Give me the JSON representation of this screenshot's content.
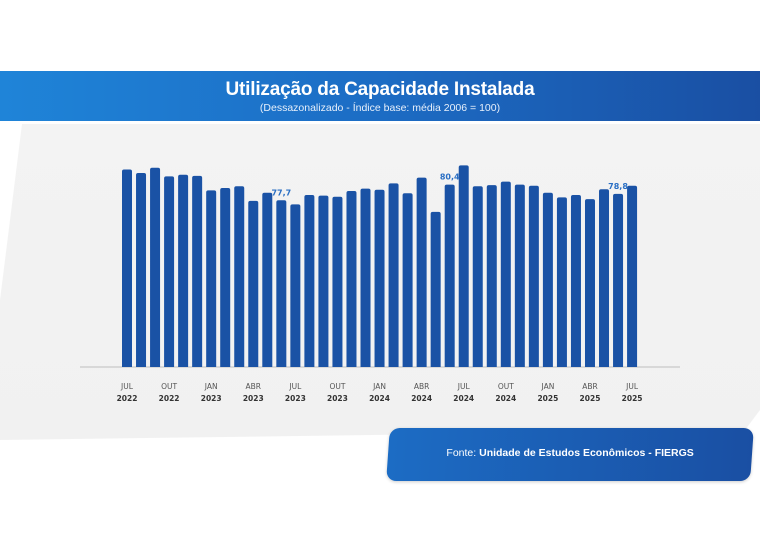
{
  "header": {
    "title": "Utilização da Capacidade Instalada",
    "subtitle": "(Dessazonalizado - Índice base: média 2006 = 100)"
  },
  "footer": {
    "prefix": "Fonte:",
    "source": "Unidade de Estudos Econômicos - FIERGS"
  },
  "colors": {
    "bar": "#1f7bd0",
    "bar_end": "#1a52a5",
    "label": "#2a6fc4",
    "header_start": "#1f84d8",
    "header_end": "#1a4fa3"
  },
  "chart_data": {
    "type": "bar",
    "title": "Utilização da Capacidade Instalada",
    "subtitle": "(Dessazonalizado - Índice base: média 2006 = 100)",
    "categories": [
      "JUL 2022",
      "AGO 2022",
      "SET 2022",
      "OUT 2022",
      "NOV 2022",
      "DEZ 2022",
      "JAN 2023",
      "FEV 2023",
      "MAR 2023",
      "ABR 2023",
      "MAI 2023",
      "JUN 2023",
      "JUL 2023",
      "AGO 2023",
      "SET 2023",
      "OUT 2023",
      "NOV 2023",
      "DEZ 2023",
      "JAN 2024",
      "FEV 2024",
      "MAR 2024",
      "ABR 2024",
      "MAI 2024",
      "JUN 2024",
      "JUL 2024",
      "AGO 2024",
      "SET 2024",
      "OUT 2024",
      "NOV 2024",
      "DEZ 2024",
      "JAN 2025",
      "FEV 2025",
      "MAR 2025",
      "ABR 2025",
      "MAI 2025",
      "JUN 2025",
      "JUL 2025"
    ],
    "values": [
      83.0,
      82.4,
      83.3,
      81.8,
      82.1,
      81.9,
      79.4,
      79.8,
      80.1,
      77.6,
      79.0,
      77.7,
      77.0,
      78.6,
      78.5,
      78.3,
      79.3,
      79.7,
      79.5,
      80.6,
      78.9,
      81.6,
      75.7,
      80.4,
      83.7,
      80.1,
      80.3,
      80.9,
      80.4,
      80.2,
      79.0,
      78.2,
      78.6,
      77.9,
      79.6,
      78.8,
      80.2
    ],
    "data_labels": [
      {
        "index": 11,
        "label": "77,7"
      },
      {
        "index": 23,
        "label": "80,4"
      },
      {
        "index": 35,
        "label": "78,8"
      }
    ],
    "ticks": [
      {
        "index": 0,
        "month": "JUL",
        "year": "2022"
      },
      {
        "index": 3,
        "month": "OUT",
        "year": "2022"
      },
      {
        "index": 6,
        "month": "JAN",
        "year": "2023"
      },
      {
        "index": 9,
        "month": "ABR",
        "year": "2023"
      },
      {
        "index": 12,
        "month": "JUL",
        "year": "2023"
      },
      {
        "index": 15,
        "month": "OUT",
        "year": "2023"
      },
      {
        "index": 18,
        "month": "JAN",
        "year": "2024"
      },
      {
        "index": 21,
        "month": "ABR",
        "year": "2024"
      },
      {
        "index": 24,
        "month": "JUL",
        "year": "2024"
      },
      {
        "index": 27,
        "month": "OUT",
        "year": "2024"
      },
      {
        "index": 30,
        "month": "JAN",
        "year": "2025"
      },
      {
        "index": 33,
        "month": "ABR",
        "year": "2025"
      },
      {
        "index": 36,
        "month": "JUL",
        "year": "2025"
      }
    ],
    "ylim": [
      49,
      85
    ],
    "y_axis_visible": false,
    "grid": false,
    "legend": "none"
  }
}
